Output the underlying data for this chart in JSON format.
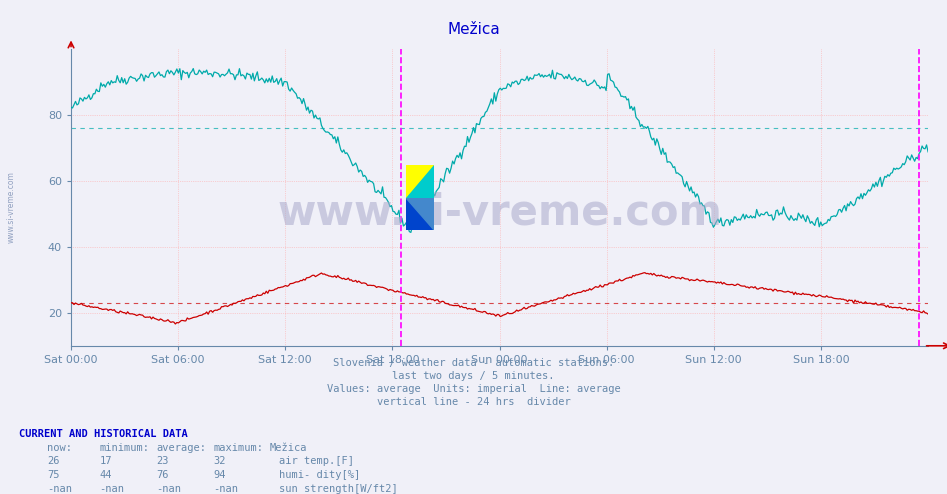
{
  "title": "Mežica",
  "title_color": "#0000cc",
  "background_color": "#f0f0f8",
  "plot_background": "#f0f0f8",
  "grid_color_h": "#ffaaaa",
  "grid_color_v": "#ffaaaa",
  "tick_color": "#6688aa",
  "x_labels": [
    "Sat 00:00",
    "Sat 06:00",
    "Sat 12:00",
    "Sat 18:00",
    "Sun 00:00",
    "Sun 06:00",
    "Sun 12:00",
    "Sun 18:00"
  ],
  "y_ticks": [
    20,
    40,
    60,
    80
  ],
  "ylim": [
    10,
    100
  ],
  "subtitle_lines": [
    "Slovenia / weather data - automatic stations.",
    "last two days / 5 minutes.",
    "Values: average  Units: imperial  Line: average",
    "vertical line - 24 hrs  divider"
  ],
  "subtitle_color": "#6688aa",
  "footer_header": "CURRENT AND HISTORICAL DATA",
  "footer_color": "#0000cc",
  "table_data": [
    [
      "26",
      "17",
      "23",
      "32",
      "air temp.[F]"
    ],
    [
      "75",
      "44",
      "76",
      "94",
      "humi- dity[%]"
    ],
    [
      "-nan",
      "-nan",
      "-nan",
      "-nan",
      "sun strength[W/ft2]"
    ]
  ],
  "legend_colors": [
    "#cc0000",
    "#008888",
    "#aaaa00"
  ],
  "avg_line_red": 23,
  "avg_line_cyan": 76,
  "watermark": "www.si-vreme.com",
  "watermark_color": "#aaaacc",
  "left_watermark": "www.si-vreme.com"
}
